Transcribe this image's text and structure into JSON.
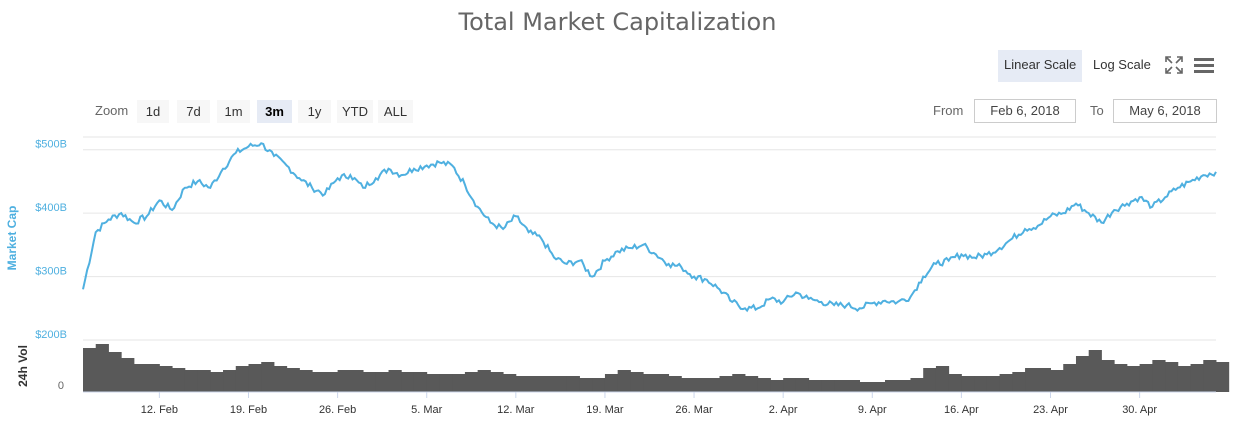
{
  "header": {
    "linear_scale_label": "Linear Scale",
    "log_scale_label": "Log Scale",
    "fullscreen_icon": "fullscreen-icon",
    "menu_icon": "hamburger-menu-icon"
  },
  "range_selector": {
    "zoom_label": "Zoom",
    "buttons": [
      "1d",
      "7d",
      "1m",
      "3m",
      "1y",
      "YTD",
      "ALL"
    ],
    "selected": "3m",
    "from_label": "From",
    "from_value": "Feb 6, 2018",
    "to_label": "To",
    "to_value": "May 6, 2018"
  },
  "colors": {
    "market_cap_line": "#4fb0e0",
    "volume_bars": "#595959",
    "axis_label": "#4fb0e0"
  },
  "chart_data": [
    {
      "type": "line",
      "title": "Total Market Capitalization",
      "ylabel": "Market Cap",
      "ylim": [
        200,
        520
      ],
      "y_ticks": [
        "$200B",
        "$300B",
        "$400B",
        "$500B"
      ],
      "y_tick_values": [
        200,
        300,
        400,
        500
      ],
      "x_tick_labels": [
        "12. Feb",
        "19. Feb",
        "26. Feb",
        "5. Mar",
        "12. Mar",
        "19. Mar",
        "26. Mar",
        "2. Apr",
        "9. Apr",
        "16. Apr",
        "23. Apr",
        "30. Apr"
      ],
      "x_range": [
        "2018-02-06",
        "2018-05-06"
      ],
      "grid": true,
      "series": [
        {
          "x": [
            "2018-02-06",
            "2018-02-07",
            "2018-02-08",
            "2018-02-09",
            "2018-02-10",
            "2018-02-11",
            "2018-02-12",
            "2018-02-13",
            "2018-02-14",
            "2018-02-15",
            "2018-02-16",
            "2018-02-17",
            "2018-02-18",
            "2018-02-19",
            "2018-02-20",
            "2018-02-21",
            "2018-02-22",
            "2018-02-23",
            "2018-02-24",
            "2018-02-25",
            "2018-02-26",
            "2018-02-27",
            "2018-02-28",
            "2018-03-01",
            "2018-03-02",
            "2018-03-03",
            "2018-03-04",
            "2018-03-05",
            "2018-03-06",
            "2018-03-07",
            "2018-03-08",
            "2018-03-09",
            "2018-03-10",
            "2018-03-11",
            "2018-03-12",
            "2018-03-13",
            "2018-03-14",
            "2018-03-15",
            "2018-03-16",
            "2018-03-17",
            "2018-03-18",
            "2018-03-19",
            "2018-03-20",
            "2018-03-21",
            "2018-03-22",
            "2018-03-23",
            "2018-03-24",
            "2018-03-25",
            "2018-03-26",
            "2018-03-27",
            "2018-03-28",
            "2018-03-29",
            "2018-03-30",
            "2018-03-31",
            "2018-04-01",
            "2018-04-02",
            "2018-04-03",
            "2018-04-04",
            "2018-04-05",
            "2018-04-06",
            "2018-04-07",
            "2018-04-08",
            "2018-04-09",
            "2018-04-10",
            "2018-04-11",
            "2018-04-12",
            "2018-04-13",
            "2018-04-14",
            "2018-04-15",
            "2018-04-16",
            "2018-04-17",
            "2018-04-18",
            "2018-04-19",
            "2018-04-20",
            "2018-04-21",
            "2018-04-22",
            "2018-04-23",
            "2018-04-24",
            "2018-04-25",
            "2018-04-26",
            "2018-04-27",
            "2018-04-28",
            "2018-04-29",
            "2018-04-30",
            "2018-05-01",
            "2018-05-02",
            "2018-05-03",
            "2018-05-04",
            "2018-05-05",
            "2018-05-06"
          ],
          "values": [
            280,
            370,
            390,
            400,
            385,
            395,
            420,
            405,
            440,
            450,
            440,
            470,
            495,
            505,
            510,
            490,
            475,
            455,
            440,
            430,
            455,
            460,
            440,
            455,
            470,
            460,
            470,
            475,
            480,
            475,
            445,
            410,
            385,
            375,
            395,
            370,
            360,
            330,
            320,
            325,
            300,
            325,
            340,
            345,
            350,
            335,
            320,
            315,
            300,
            295,
            280,
            260,
            250,
            250,
            265,
            260,
            275,
            265,
            260,
            255,
            255,
            250,
            258,
            262,
            260,
            268,
            300,
            320,
            325,
            335,
            330,
            335,
            345,
            360,
            375,
            380,
            395,
            400,
            415,
            400,
            385,
            405,
            415,
            425,
            410,
            425,
            440,
            450,
            460,
            465
          ]
        }
      ]
    },
    {
      "type": "bar",
      "ylabel": "24h Vol",
      "y_ticks": [
        "0"
      ],
      "y_tick_values": [
        0
      ],
      "ylim": [
        0,
        26
      ],
      "x_range": [
        "2018-02-06",
        "2018-05-06"
      ],
      "series": [
        {
          "x": [
            "2018-02-06",
            "2018-02-07",
            "2018-02-08",
            "2018-02-09",
            "2018-02-10",
            "2018-02-11",
            "2018-02-12",
            "2018-02-13",
            "2018-02-14",
            "2018-02-15",
            "2018-02-16",
            "2018-02-17",
            "2018-02-18",
            "2018-02-19",
            "2018-02-20",
            "2018-02-21",
            "2018-02-22",
            "2018-02-23",
            "2018-02-24",
            "2018-02-25",
            "2018-02-26",
            "2018-02-27",
            "2018-02-28",
            "2018-03-01",
            "2018-03-02",
            "2018-03-03",
            "2018-03-04",
            "2018-03-05",
            "2018-03-06",
            "2018-03-07",
            "2018-03-08",
            "2018-03-09",
            "2018-03-10",
            "2018-03-11",
            "2018-03-12",
            "2018-03-13",
            "2018-03-14",
            "2018-03-15",
            "2018-03-16",
            "2018-03-17",
            "2018-03-18",
            "2018-03-19",
            "2018-03-20",
            "2018-03-21",
            "2018-03-22",
            "2018-03-23",
            "2018-03-24",
            "2018-03-25",
            "2018-03-26",
            "2018-03-27",
            "2018-03-28",
            "2018-03-29",
            "2018-03-30",
            "2018-03-31",
            "2018-04-01",
            "2018-04-02",
            "2018-04-03",
            "2018-04-04",
            "2018-04-05",
            "2018-04-06",
            "2018-04-07",
            "2018-04-08",
            "2018-04-09",
            "2018-04-10",
            "2018-04-11",
            "2018-04-12",
            "2018-04-13",
            "2018-04-14",
            "2018-04-15",
            "2018-04-16",
            "2018-04-17",
            "2018-04-18",
            "2018-04-19",
            "2018-04-20",
            "2018-04-21",
            "2018-04-22",
            "2018-04-23",
            "2018-04-24",
            "2018-04-25",
            "2018-04-26",
            "2018-04-27",
            "2018-04-28",
            "2018-04-29",
            "2018-04-30",
            "2018-05-01",
            "2018-05-02",
            "2018-05-03",
            "2018-05-04",
            "2018-05-05",
            "2018-05-06"
          ],
          "values": [
            22,
            24,
            20,
            17,
            14,
            14,
            13,
            12,
            11,
            11,
            10,
            11,
            13,
            14,
            15,
            13,
            12,
            11,
            10,
            10,
            11,
            11,
            10,
            10,
            11,
            10,
            10,
            9,
            9,
            9,
            10,
            11,
            10,
            9,
            8,
            8,
            8,
            8,
            8,
            7,
            7,
            9,
            11,
            10,
            9,
            9,
            8,
            7,
            7,
            7,
            8,
            9,
            8,
            7,
            6,
            7,
            7,
            6,
            6,
            6,
            6,
            5,
            5,
            6,
            6,
            7,
            12,
            13,
            9,
            8,
            8,
            8,
            9,
            10,
            12,
            12,
            11,
            14,
            18,
            21,
            16,
            14,
            13,
            14,
            16,
            15,
            13,
            14,
            16,
            15
          ]
        }
      ]
    }
  ]
}
